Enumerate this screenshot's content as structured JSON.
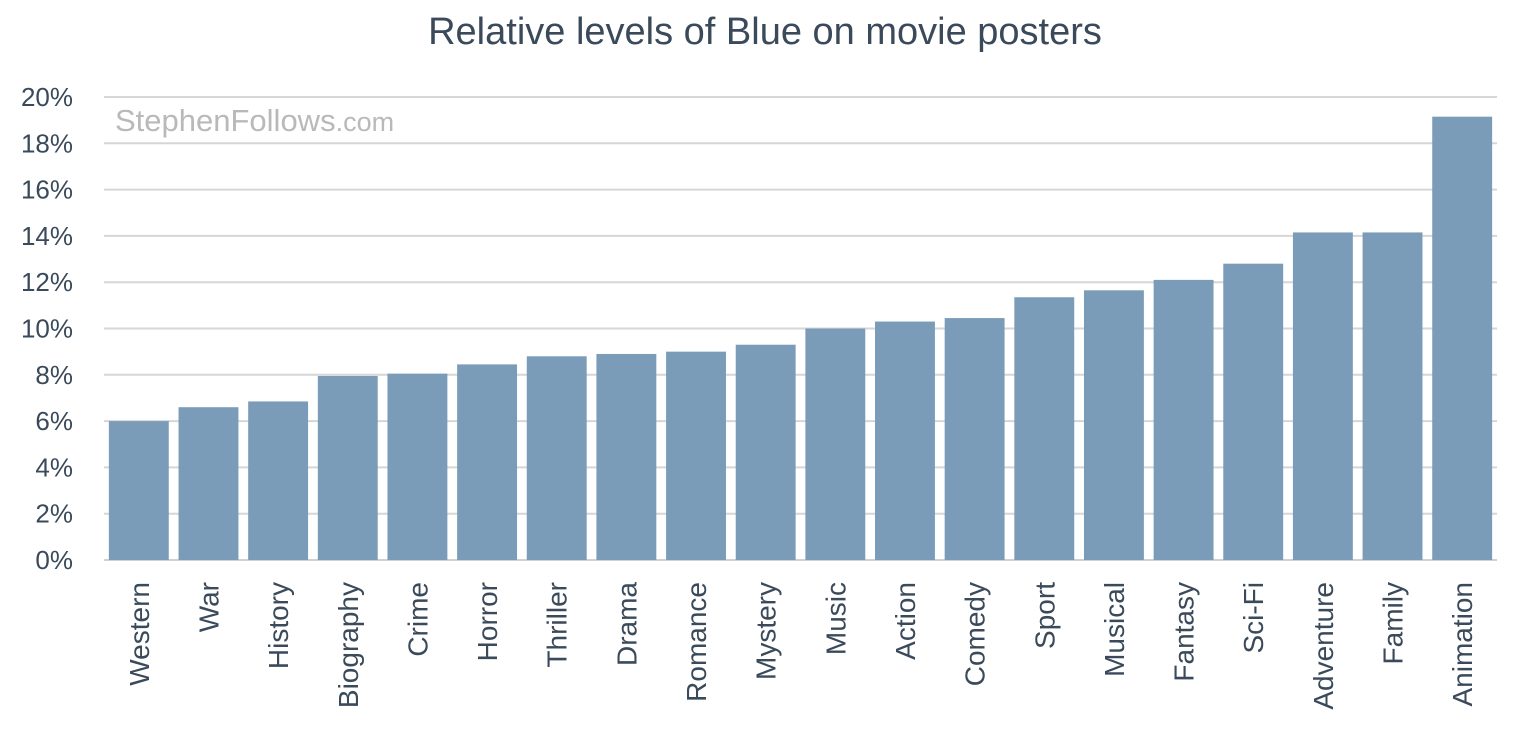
{
  "chart_data": {
    "type": "bar",
    "title": "Relative levels of Blue on movie posters",
    "watermark": {
      "main": "StephenFollows",
      "suffix": ".com"
    },
    "categories": [
      "Western",
      "War",
      "History",
      "Biography",
      "Crime",
      "Horror",
      "Thriller",
      "Drama",
      "Romance",
      "Mystery",
      "Music",
      "Action",
      "Comedy",
      "Sport",
      "Musical",
      "Fantasy",
      "Sci-Fi",
      "Adventure",
      "Family",
      "Animation"
    ],
    "values": [
      6.0,
      6.6,
      6.85,
      7.95,
      8.05,
      8.45,
      8.8,
      8.9,
      9.0,
      9.3,
      10.0,
      10.3,
      10.45,
      11.35,
      11.65,
      12.1,
      12.8,
      14.15,
      14.15,
      19.15
    ],
    "ylim": [
      0,
      20
    ],
    "yticks": [
      "0%",
      "2%",
      "4%",
      "6%",
      "8%",
      "10%",
      "12%",
      "14%",
      "16%",
      "18%",
      "20%"
    ],
    "grid": true,
    "legend": "none",
    "bar_color": "#7a9cb8"
  }
}
